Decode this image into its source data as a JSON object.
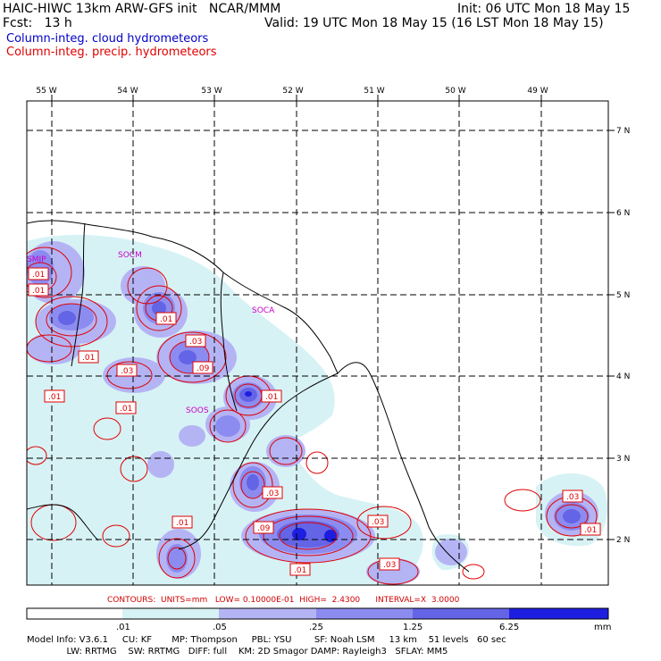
{
  "header": {
    "left_line1": "HAIC-HIWC 13km ARW-GFS init   NCAR/MMM",
    "left_line2": "Fcst:   13 h",
    "right_line1": "Init: 06 UTC Mon 18 May 15",
    "right_line2": "Valid: 19 UTC Mon 18 May 15 (16 LST Mon 18 May 15)",
    "legend_blue": "Column-integ. cloud hydrometeors",
    "legend_red": "Column-integ. precip. hydrometeors"
  },
  "axes": {
    "lon_labels": [
      "55 W",
      "54 W",
      "53 W",
      "52 W",
      "51 W",
      "50 W",
      "49 W"
    ],
    "lat_labels": [
      "7 N",
      "6 N",
      "5 N",
      "4 N",
      "3 N",
      "2 N"
    ]
  },
  "place_labels": [
    "SMJP",
    "SOCM",
    "SOCA",
    "SOOS"
  ],
  "contour_labels": [
    ".01",
    ".01",
    ".01",
    ".01",
    ".01",
    ".03",
    ".03",
    ".09",
    ".01",
    ".01",
    ".03",
    ".01",
    ".09",
    ".03",
    ".03",
    ".03",
    ".01",
    ".01"
  ],
  "contour_info": "CONTOURS:  UNITS=mm   LOW= 0.10000E-01  HIGH=  2.4300      INTERVAL=X  3.0000",
  "colorbar": {
    "labels": [
      ".01",
      ".05",
      ".25",
      "1.25",
      "6.25"
    ],
    "units": "mm",
    "colors": [
      "#ffffff",
      "#d7f2f5",
      "#b4b4f5",
      "#8c8cf0",
      "#6464e6",
      "#1e1ee0"
    ]
  },
  "footer": {
    "line1": "Model Info: V3.6.1     CU: KF       MP: Thompson     PBL: YSU        SF: Noah LSM     13 km    51 levels   60 sec",
    "line2": "              LW: RRTMG    SW: RRTMG   DIFF: full    KM: 2D Smagor DAMP: Rayleigh3   SFLAY: MM5"
  },
  "colors": {
    "cloud_legend": "#0000c8",
    "precip_legend": "#e00000",
    "contour": "#e00000",
    "station": "#c800c8"
  }
}
